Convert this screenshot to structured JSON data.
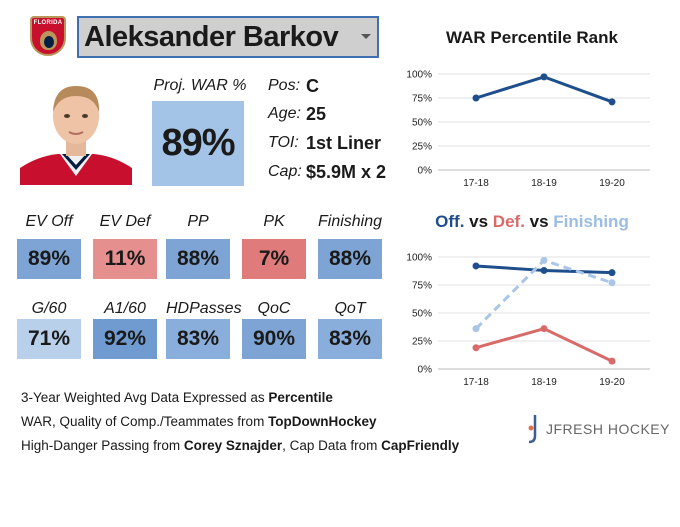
{
  "player": {
    "name": "Aleksander Barkov",
    "team_logo_text": "FLORIDA",
    "proj_war_label": "Proj. WAR %",
    "proj_war_value": "89%"
  },
  "info": [
    {
      "label": "Pos:",
      "value": "C"
    },
    {
      "label": "Age:",
      "value": "25"
    },
    {
      "label": "TOI:",
      "value": "1st Liner"
    },
    {
      "label": "Cap:",
      "value": "$5.9M x 2"
    }
  ],
  "stats_row1": [
    {
      "label": "EV Off",
      "value": "89%",
      "color": "#7da4d4"
    },
    {
      "label": "EV Def",
      "value": "11%",
      "color": "#e58f8f"
    },
    {
      "label": "PP",
      "value": "88%",
      "color": "#7da4d4"
    },
    {
      "label": "PK",
      "value": "7%",
      "color": "#e07b7b"
    },
    {
      "label": "Finishing",
      "value": "88%",
      "color": "#7da4d4"
    }
  ],
  "stats_row2": [
    {
      "label": "G/60",
      "value": "71%",
      "color": "#b8d0ea"
    },
    {
      "label": "A1/60",
      "value": "92%",
      "color": "#6f9bd0"
    },
    {
      "label": "HDPasses",
      "value": "83%",
      "color": "#8aaedb"
    },
    {
      "label": "QoC",
      "value": "90%",
      "color": "#7da4d4"
    },
    {
      "label": "QoT",
      "value": "83%",
      "color": "#8aaedb"
    }
  ],
  "footer": {
    "line1_prefix": "3-Year Weighted Avg Data Expressed as ",
    "line1_bold": "Percentile",
    "line2_prefix": "WAR, Quality of Comp./Teammates from ",
    "line2_bold": "TopDownHockey",
    "line3_prefix": "High-Danger Passing from ",
    "line3_bold1": "Corey Sznajder",
    "line3_mid": ", Cap Data from ",
    "line3_bold2": "CapFriendly"
  },
  "brand": {
    "name": "JFRESH HOCKEY"
  },
  "chart_data": [
    {
      "type": "line",
      "title": "WAR Percentile Rank",
      "categories": [
        "17-18",
        "18-19",
        "19-20"
      ],
      "series": [
        {
          "values": [
            75,
            97,
            71
          ],
          "color": "#1f4e8c",
          "dashed": false
        }
      ],
      "ylim": [
        0,
        100
      ],
      "yticks": [
        "0%",
        "25%",
        "50%",
        "75%",
        "100%"
      ],
      "grid": true
    },
    {
      "type": "line",
      "title_parts": [
        {
          "text": "Off.",
          "color": "#1f4e8c"
        },
        {
          "text": " vs ",
          "color": "#1a1a1a"
        },
        {
          "text": "Def.",
          "color": "#d96a6a"
        },
        {
          "text": " vs ",
          "color": "#1a1a1a"
        },
        {
          "text": "Finishing",
          "color": "#9cbde3"
        }
      ],
      "categories": [
        "17-18",
        "18-19",
        "19-20"
      ],
      "series": [
        {
          "values": [
            92,
            88,
            86
          ],
          "color": "#1f4e8c",
          "dashed": false
        },
        {
          "values": [
            19,
            36,
            7
          ],
          "color": "#d96a6a",
          "dashed": false
        },
        {
          "values": [
            36,
            97,
            77
          ],
          "color": "#a9c6e8",
          "dashed": true
        }
      ],
      "ylim": [
        0,
        100
      ],
      "yticks": [
        "0%",
        "25%",
        "50%",
        "75%",
        "100%"
      ],
      "grid": true
    }
  ]
}
